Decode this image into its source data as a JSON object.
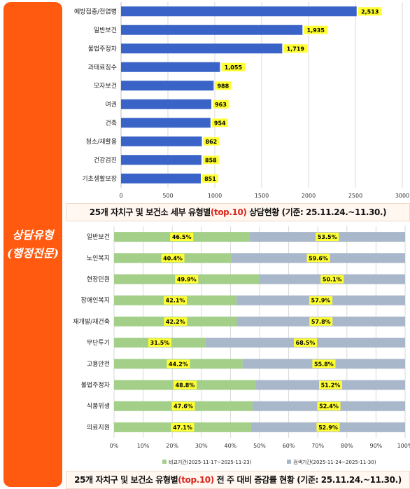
{
  "sidebar": {
    "line1": "상담유형",
    "line2": "(행정전문)"
  },
  "captions": {
    "top": {
      "pre": "25개 자치구 및 보건소 세부 유형별",
      "hl": "(top.10)",
      "post": " 상담현황  (기준: 25.11.24.~11.30.)"
    },
    "bottom": {
      "pre": "25개 자치구 및 보건소 유형별",
      "hl": "(top.10)",
      "post": " 전 주 대비 증감률 현황 (기준: 25.11.24.~11.30.)"
    }
  },
  "colors": {
    "bar_blue": "#3a63c7",
    "label_yellow": "#ffff33",
    "green": "#a3cf89",
    "gray": "#a9b7ca",
    "sidebar": "#ff5a0f"
  },
  "chart_data": [
    {
      "type": "bar",
      "orientation": "horizontal",
      "categories": [
        "예방접종/전염병",
        "일반보건",
        "불법주정차",
        "과태료징수",
        "모자보건",
        "여권",
        "건축",
        "청소/재활용",
        "건강검진",
        "기초생활보장"
      ],
      "values": [
        2513,
        1935,
        1719,
        1055,
        988,
        963,
        954,
        862,
        858,
        851
      ],
      "value_labels": [
        "2,513",
        "1,935",
        "1,719",
        "1,055",
        "988",
        "963",
        "954",
        "862",
        "858",
        "851"
      ],
      "xlim": [
        0,
        3000
      ],
      "xticks": [
        "0",
        "500",
        "1000",
        "1500",
        "2000",
        "2500",
        "3000"
      ],
      "grid": true
    },
    {
      "type": "bar",
      "orientation": "horizontal",
      "stacked": "percent",
      "categories": [
        "일반보건",
        "노인복지",
        "현장민원",
        "장애인복지",
        "재개발/재건축",
        "무단투기",
        "고용안전",
        "불법주정차",
        "식품위생",
        "의료지원"
      ],
      "series": [
        {
          "name": "비교기간(2025-11-17~2025-11-23)",
          "values": [
            46.5,
            40.4,
            49.9,
            42.1,
            42.2,
            31.5,
            44.2,
            48.8,
            47.6,
            47.1
          ],
          "labels": [
            "46.5%",
            "40.4%",
            "49.9%",
            "42.1%",
            "42.2%",
            "31.5%",
            "44.2%",
            "48.8%",
            "47.6%",
            "47.1%"
          ]
        },
        {
          "name": "검색기간(2025-11-24~2025-11-30)",
          "values": [
            53.5,
            59.6,
            50.1,
            57.9,
            57.8,
            68.5,
            55.8,
            51.2,
            52.4,
            52.9
          ],
          "labels": [
            "53.5%",
            "59.6%",
            "50.1%",
            "57.9%",
            "57.8%",
            "68.5%",
            "55.8%",
            "51.2%",
            "52.4%",
            "52.9%"
          ]
        }
      ],
      "xlim": [
        0,
        100
      ],
      "xticks": [
        "0%",
        "10%",
        "20%",
        "30%",
        "40%",
        "50%",
        "60%",
        "70%",
        "80%",
        "90%",
        "100%"
      ],
      "grid": true,
      "legend": "bottom"
    }
  ]
}
